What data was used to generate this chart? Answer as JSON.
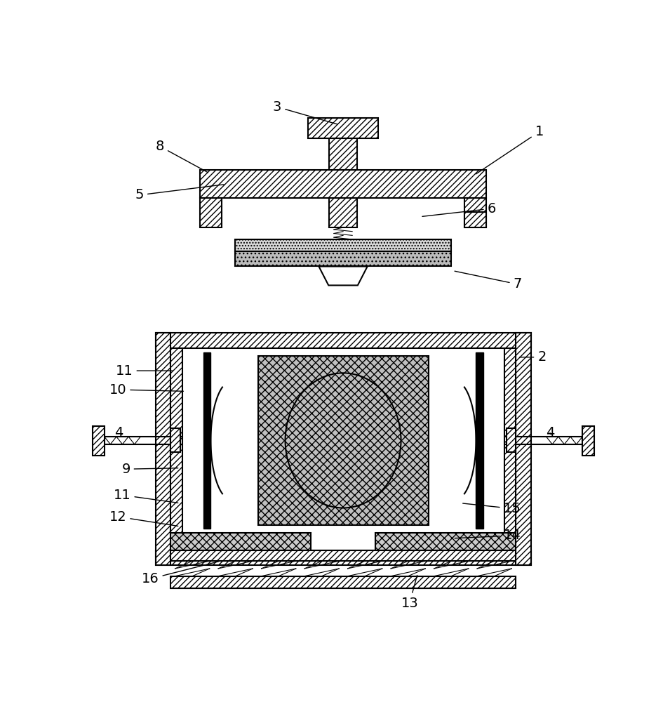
{
  "bg_color": "#ffffff",
  "fontsize": 14,
  "lw": 1.5,
  "lw_thin": 0.8
}
